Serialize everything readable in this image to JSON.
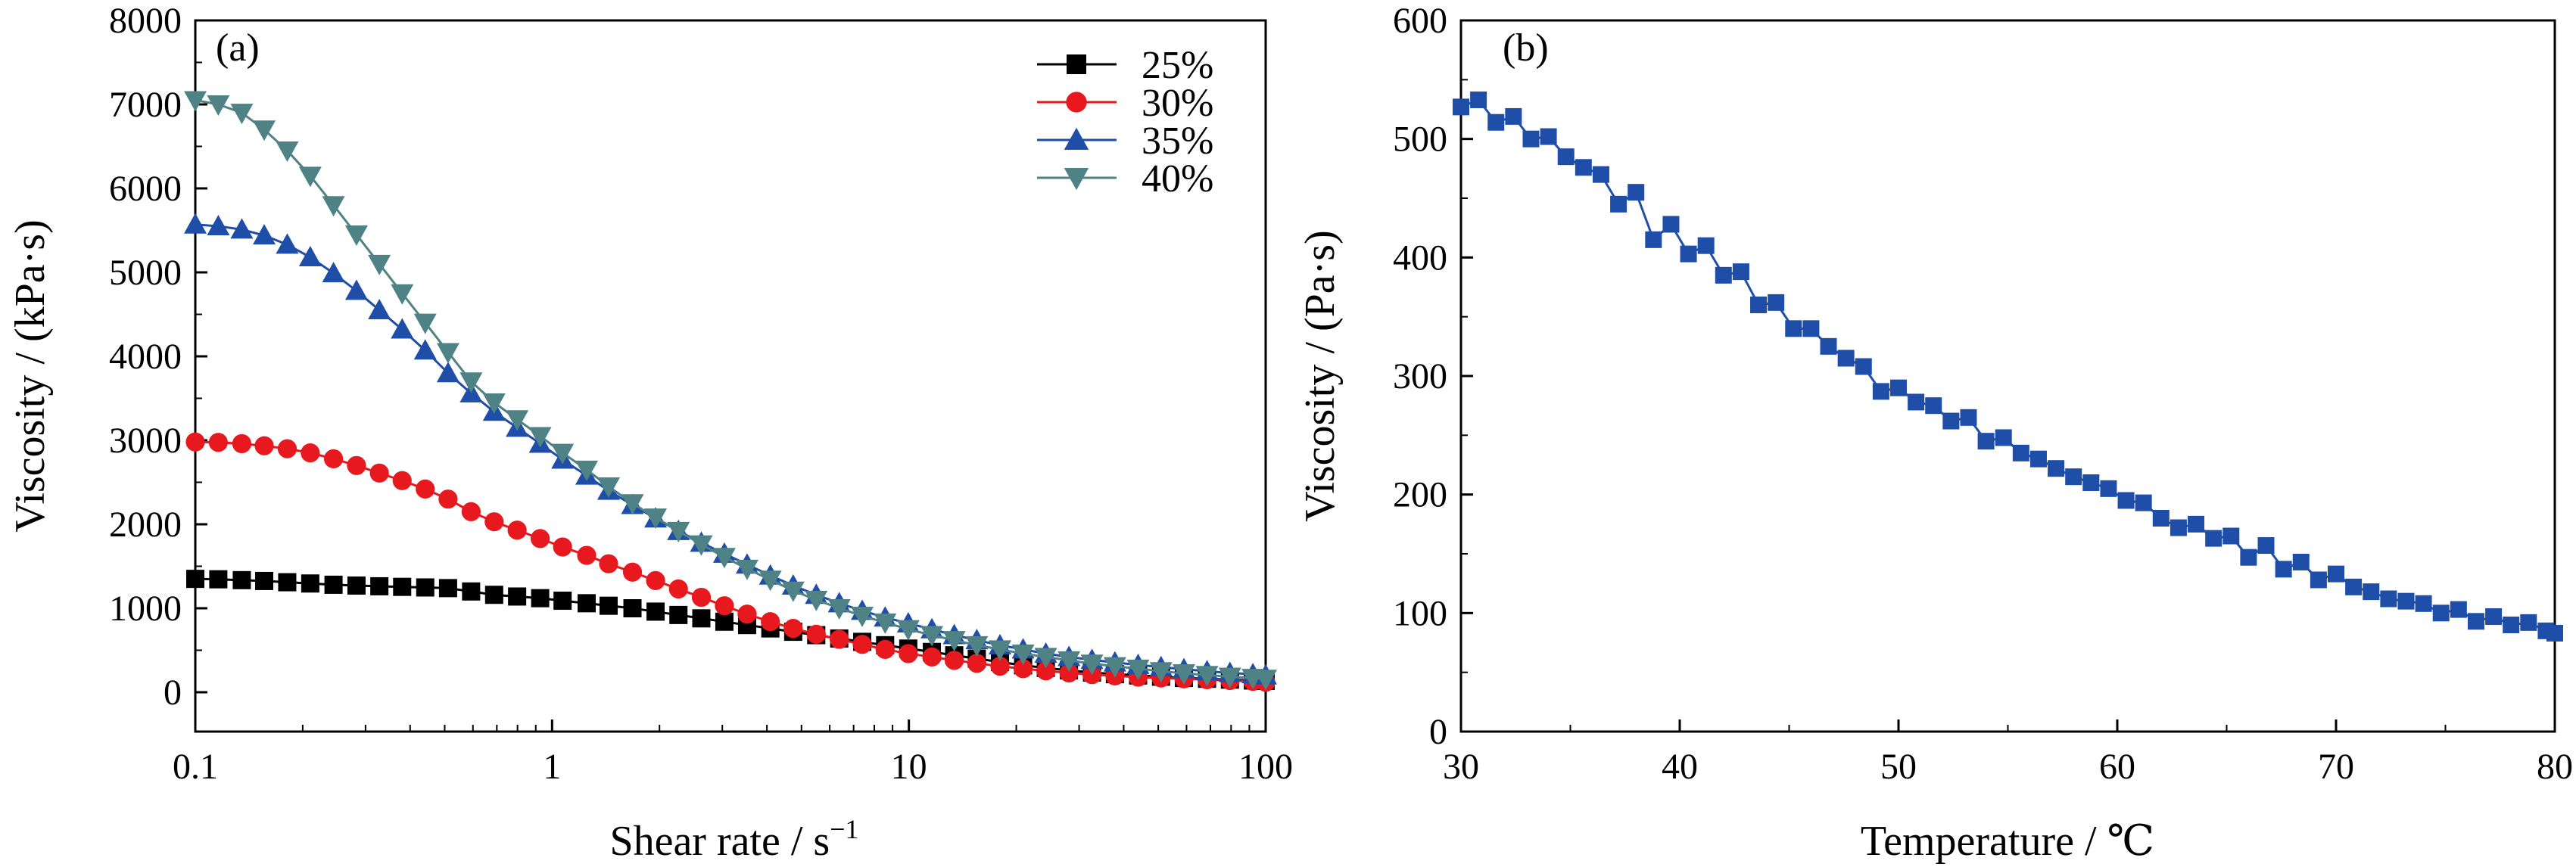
{
  "chart_data": [
    {
      "type": "line",
      "panel_label": "(a)",
      "xlabel": "Shear rate / s",
      "xlabel_superscript": "−1",
      "ylabel": "Viscosity / (kPa·s)",
      "x_scale": "log",
      "xlim": [
        0.1,
        100
      ],
      "ylim": [
        0,
        8000
      ],
      "xticks": [
        "0.1",
        "1",
        "10",
        "100"
      ],
      "yticks": [
        "0",
        "1000",
        "2000",
        "3000",
        "4000",
        "5000",
        "6000",
        "7000",
        "8000"
      ],
      "grid": false,
      "legend_position": "top-right",
      "x": [
        0.1,
        0.116,
        0.135,
        0.156,
        0.181,
        0.21,
        0.244,
        0.283,
        0.328,
        0.38,
        0.441,
        0.511,
        0.593,
        0.688,
        0.798,
        0.926,
        1.07,
        1.25,
        1.44,
        1.68,
        1.95,
        2.26,
        2.62,
        3.04,
        3.52,
        4.09,
        4.74,
        5.5,
        6.38,
        7.4,
        8.58,
        9.96,
        11.6,
        13.4,
        15.5,
        18.0,
        20.9,
        24.2,
        28.1,
        32.6,
        37.8,
        43.9,
        50.9,
        59.0,
        68.5,
        79.4,
        92.1,
        100
      ],
      "series": [
        {
          "name": "25%",
          "color": "#000000",
          "marker": "square",
          "values": [
            1350,
            1345,
            1335,
            1325,
            1310,
            1295,
            1280,
            1270,
            1262,
            1255,
            1248,
            1240,
            1200,
            1160,
            1140,
            1120,
            1090,
            1060,
            1030,
            1000,
            960,
            920,
            880,
            840,
            800,
            760,
            720,
            680,
            640,
            600,
            560,
            520,
            480,
            440,
            400,
            360,
            320,
            290,
            260,
            235,
            215,
            200,
            185,
            170,
            160,
            150,
            140,
            135
          ]
        },
        {
          "name": "30%",
          "color": "#e8191e",
          "marker": "circle",
          "values": [
            2980,
            2975,
            2960,
            2935,
            2900,
            2850,
            2780,
            2700,
            2610,
            2520,
            2420,
            2300,
            2150,
            2030,
            1930,
            1830,
            1730,
            1630,
            1530,
            1430,
            1330,
            1230,
            1130,
            1030,
            930,
            840,
            760,
            690,
            630,
            570,
            510,
            460,
            420,
            380,
            345,
            310,
            280,
            255,
            230,
            210,
            195,
            180,
            170,
            160,
            150,
            140,
            130,
            120
          ]
        },
        {
          "name": "35%",
          "color": "#1f4ea8",
          "marker": "triangle-up",
          "values": [
            5570,
            5550,
            5510,
            5440,
            5330,
            5180,
            4990,
            4780,
            4550,
            4320,
            4070,
            3800,
            3560,
            3340,
            3150,
            2960,
            2770,
            2580,
            2400,
            2230,
            2070,
            1920,
            1780,
            1650,
            1520,
            1390,
            1270,
            1160,
            1060,
            970,
            890,
            820,
            750,
            680,
            620,
            560,
            510,
            460,
            420,
            385,
            355,
            325,
            300,
            275,
            250,
            230,
            215,
            200
          ]
        },
        {
          "name": "40%",
          "color": "#4f8285",
          "marker": "triangle-down",
          "values": [
            7050,
            7000,
            6900,
            6700,
            6450,
            6150,
            5800,
            5450,
            5100,
            4750,
            4400,
            4050,
            3700,
            3450,
            3250,
            3050,
            2850,
            2650,
            2450,
            2250,
            2080,
            1920,
            1760,
            1610,
            1470,
            1340,
            1210,
            1100,
            1000,
            910,
            830,
            750,
            680,
            620,
            560,
            510,
            460,
            420,
            380,
            340,
            310,
            280,
            250,
            225,
            205,
            185,
            170,
            160
          ]
        }
      ]
    },
    {
      "type": "line",
      "panel_label": "(b)",
      "xlabel": "Temperature / ℃",
      "ylabel": "Viscosity / (Pa·s)",
      "xlim": [
        30,
        80
      ],
      "ylim": [
        0,
        600
      ],
      "xticks": [
        "30",
        "40",
        "50",
        "60",
        "70",
        "80"
      ],
      "yticks": [
        "0",
        "100",
        "200",
        "300",
        "400",
        "500",
        "600"
      ],
      "grid": false,
      "x": [
        30,
        30.8,
        31.6,
        32.4,
        33.2,
        34.0,
        34.8,
        35.6,
        36.4,
        37.2,
        38.0,
        38.8,
        39.6,
        40.4,
        41.2,
        42.0,
        42.8,
        43.6,
        44.4,
        45.2,
        46.0,
        46.8,
        47.6,
        48.4,
        49.2,
        50.0,
        50.8,
        51.6,
        52.4,
        53.2,
        54.0,
        54.8,
        55.6,
        56.4,
        57.2,
        58.0,
        58.8,
        59.6,
        60.4,
        61.2,
        62.0,
        62.8,
        63.6,
        64.4,
        65.2,
        66.0,
        66.8,
        67.6,
        68.4,
        69.2,
        70.0,
        70.8,
        71.6,
        72.4,
        73.2,
        74.0,
        74.8,
        75.6,
        76.4,
        77.2,
        78.0,
        78.8,
        79.6,
        80
      ],
      "series": [
        {
          "color": "#1f4ea8",
          "marker": "square",
          "values": [
            527,
            533,
            514,
            519,
            500,
            502,
            485,
            476,
            470,
            445,
            455,
            415,
            428,
            403,
            410,
            385,
            388,
            360,
            362,
            340,
            340,
            325,
            315,
            308,
            287,
            290,
            278,
            275,
            262,
            265,
            245,
            248,
            235,
            230,
            222,
            215,
            210,
            205,
            195,
            193,
            180,
            172,
            175,
            163,
            165,
            147,
            157,
            137,
            143,
            128,
            133,
            122,
            118,
            112,
            110,
            108,
            100,
            103,
            93,
            97,
            90,
            92,
            85,
            83
          ]
        }
      ]
    }
  ]
}
